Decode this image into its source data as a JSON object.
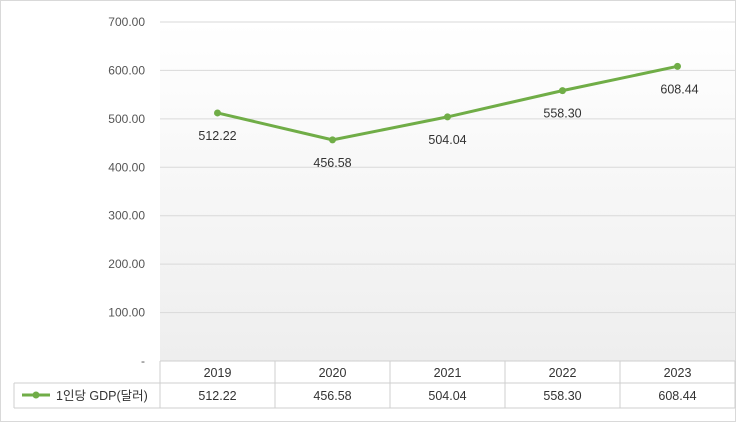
{
  "chart_data": {
    "type": "line",
    "categories": [
      "2019",
      "2020",
      "2021",
      "2022",
      "2023"
    ],
    "series": [
      {
        "name": "1인당 GDP(달러)",
        "values": [
          512.22,
          456.58,
          504.04,
          558.3,
          608.44
        ],
        "color": "#70ad47"
      }
    ],
    "value_labels": [
      "512.22",
      "456.58",
      "504.04",
      "558.30",
      "608.44"
    ],
    "ylim": [
      0,
      700
    ],
    "yticks": [
      0,
      100,
      200,
      300,
      400,
      500,
      600,
      700
    ],
    "ytick_labels": [
      "-",
      "100.00",
      "200.00",
      "300.00",
      "400.00",
      "500.00",
      "600.00",
      "700.00"
    ],
    "grid": true,
    "legend": "data-table-left"
  }
}
